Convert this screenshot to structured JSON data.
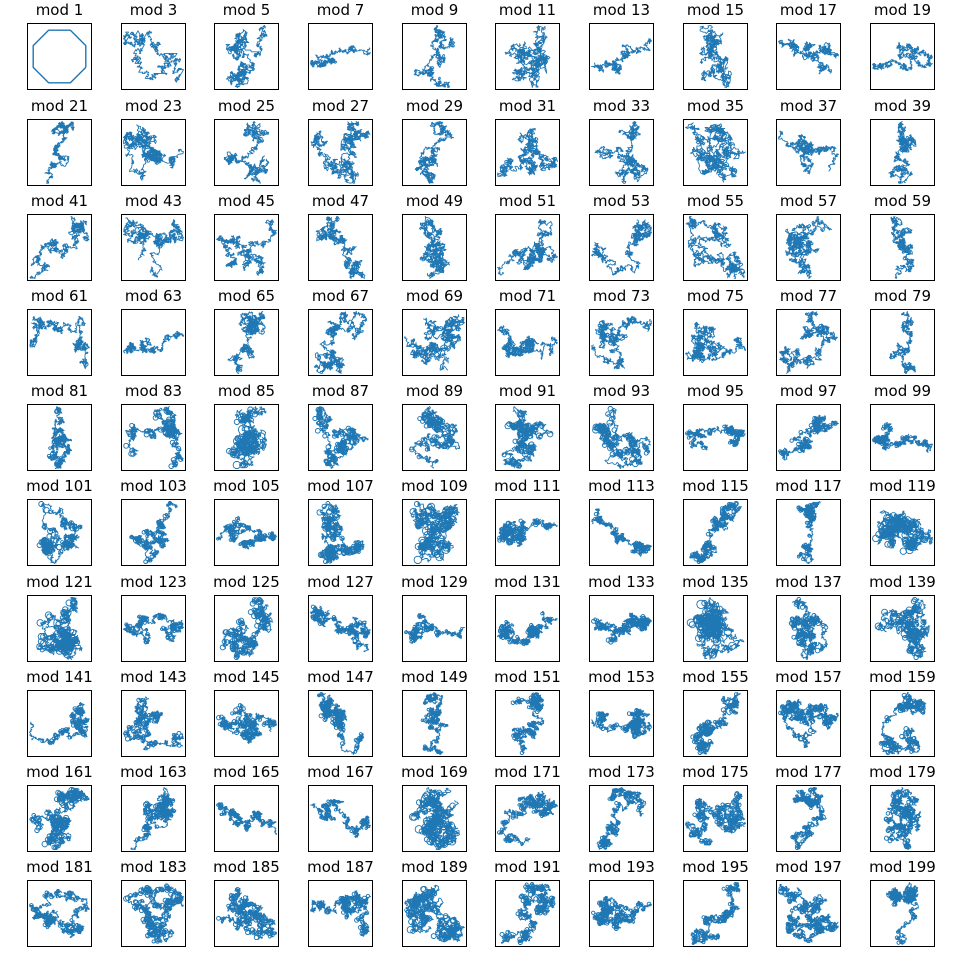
{
  "figure": {
    "line_color": "#1f77b4",
    "frame_color": "#000000",
    "background": "#ffffff"
  },
  "chart_data": {
    "type": "line",
    "rows": 10,
    "cols": 10,
    "axes_ticks": "hidden",
    "grid": false,
    "panels": [
      {
        "title": "mod 1",
        "n": 1,
        "shape": "octagon"
      },
      {
        "title": "mod 3",
        "n": 3
      },
      {
        "title": "mod 5",
        "n": 5
      },
      {
        "title": "mod 7",
        "n": 7
      },
      {
        "title": "mod 9",
        "n": 9
      },
      {
        "title": "mod 11",
        "n": 11
      },
      {
        "title": "mod 13",
        "n": 13
      },
      {
        "title": "mod 15",
        "n": 15
      },
      {
        "title": "mod 17",
        "n": 17
      },
      {
        "title": "mod 19",
        "n": 19
      },
      {
        "title": "mod 21",
        "n": 21
      },
      {
        "title": "mod 23",
        "n": 23
      },
      {
        "title": "mod 25",
        "n": 25
      },
      {
        "title": "mod 27",
        "n": 27
      },
      {
        "title": "mod 29",
        "n": 29
      },
      {
        "title": "mod 31",
        "n": 31
      },
      {
        "title": "mod 33",
        "n": 33
      },
      {
        "title": "mod 35",
        "n": 35
      },
      {
        "title": "mod 37",
        "n": 37
      },
      {
        "title": "mod 39",
        "n": 39
      },
      {
        "title": "mod 41",
        "n": 41
      },
      {
        "title": "mod 43",
        "n": 43
      },
      {
        "title": "mod 45",
        "n": 45
      },
      {
        "title": "mod 47",
        "n": 47
      },
      {
        "title": "mod 49",
        "n": 49
      },
      {
        "title": "mod 51",
        "n": 51
      },
      {
        "title": "mod 53",
        "n": 53
      },
      {
        "title": "mod 55",
        "n": 55
      },
      {
        "title": "mod 57",
        "n": 57
      },
      {
        "title": "mod 59",
        "n": 59
      },
      {
        "title": "mod 61",
        "n": 61
      },
      {
        "title": "mod 63",
        "n": 63
      },
      {
        "title": "mod 65",
        "n": 65
      },
      {
        "title": "mod 67",
        "n": 67
      },
      {
        "title": "mod 69",
        "n": 69
      },
      {
        "title": "mod 71",
        "n": 71
      },
      {
        "title": "mod 73",
        "n": 73
      },
      {
        "title": "mod 75",
        "n": 75
      },
      {
        "title": "mod 77",
        "n": 77
      },
      {
        "title": "mod 79",
        "n": 79
      },
      {
        "title": "mod 81",
        "n": 81
      },
      {
        "title": "mod 83",
        "n": 83
      },
      {
        "title": "mod 85",
        "n": 85
      },
      {
        "title": "mod 87",
        "n": 87
      },
      {
        "title": "mod 89",
        "n": 89
      },
      {
        "title": "mod 91",
        "n": 91
      },
      {
        "title": "mod 93",
        "n": 93
      },
      {
        "title": "mod 95",
        "n": 95
      },
      {
        "title": "mod 97",
        "n": 97
      },
      {
        "title": "mod 99",
        "n": 99
      },
      {
        "title": "mod 101",
        "n": 101
      },
      {
        "title": "mod 103",
        "n": 103
      },
      {
        "title": "mod 105",
        "n": 105
      },
      {
        "title": "mod 107",
        "n": 107
      },
      {
        "title": "mod 109",
        "n": 109
      },
      {
        "title": "mod 111",
        "n": 111
      },
      {
        "title": "mod 113",
        "n": 113
      },
      {
        "title": "mod 115",
        "n": 115
      },
      {
        "title": "mod 117",
        "n": 117
      },
      {
        "title": "mod 119",
        "n": 119
      },
      {
        "title": "mod 121",
        "n": 121
      },
      {
        "title": "mod 123",
        "n": 123
      },
      {
        "title": "mod 125",
        "n": 125
      },
      {
        "title": "mod 127",
        "n": 127
      },
      {
        "title": "mod 129",
        "n": 129
      },
      {
        "title": "mod 131",
        "n": 131
      },
      {
        "title": "mod 133",
        "n": 133
      },
      {
        "title": "mod 135",
        "n": 135
      },
      {
        "title": "mod 137",
        "n": 137
      },
      {
        "title": "mod 139",
        "n": 139
      },
      {
        "title": "mod 141",
        "n": 141
      },
      {
        "title": "mod 143",
        "n": 143
      },
      {
        "title": "mod 145",
        "n": 145
      },
      {
        "title": "mod 147",
        "n": 147
      },
      {
        "title": "mod 149",
        "n": 149
      },
      {
        "title": "mod 151",
        "n": 151
      },
      {
        "title": "mod 153",
        "n": 153
      },
      {
        "title": "mod 155",
        "n": 155
      },
      {
        "title": "mod 157",
        "n": 157
      },
      {
        "title": "mod 159",
        "n": 159
      },
      {
        "title": "mod 161",
        "n": 161
      },
      {
        "title": "mod 163",
        "n": 163
      },
      {
        "title": "mod 165",
        "n": 165
      },
      {
        "title": "mod 167",
        "n": 167
      },
      {
        "title": "mod 169",
        "n": 169
      },
      {
        "title": "mod 171",
        "n": 171
      },
      {
        "title": "mod 173",
        "n": 173
      },
      {
        "title": "mod 175",
        "n": 175
      },
      {
        "title": "mod 177",
        "n": 177
      },
      {
        "title": "mod 179",
        "n": 179
      },
      {
        "title": "mod 181",
        "n": 181
      },
      {
        "title": "mod 183",
        "n": 183
      },
      {
        "title": "mod 185",
        "n": 185
      },
      {
        "title": "mod 187",
        "n": 187
      },
      {
        "title": "mod 189",
        "n": 189
      },
      {
        "title": "mod 191",
        "n": 191
      },
      {
        "title": "mod 193",
        "n": 193
      },
      {
        "title": "mod 195",
        "n": 195
      },
      {
        "title": "mod 197",
        "n": 197
      },
      {
        "title": "mod 199",
        "n": 199
      }
    ]
  }
}
